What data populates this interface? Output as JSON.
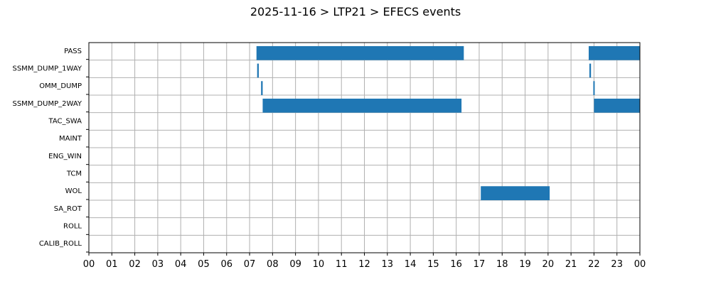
{
  "chart_data": {
    "type": "bar",
    "title": "2025-11-16 > LTP21 > EFECS events",
    "xlabel": "",
    "ylabel": "",
    "xlim": [
      0,
      24
    ],
    "x_ticks": [
      "00",
      "01",
      "02",
      "03",
      "04",
      "05",
      "06",
      "07",
      "08",
      "09",
      "10",
      "11",
      "12",
      "13",
      "14",
      "15",
      "16",
      "17",
      "18",
      "19",
      "20",
      "21",
      "22",
      "23",
      "00"
    ],
    "categories": [
      "PASS",
      "SSMM_DUMP_1WAY",
      "OMM_DUMP",
      "SSMM_DUMP_2WAY",
      "TAC_SWA",
      "MAINT",
      "ENG_WIN",
      "TCM",
      "WOL",
      "SA_ROT",
      "ROLL",
      "CALIB_ROLL"
    ],
    "series": [
      {
        "values": [
          {
            "category": "PASS",
            "start": 7.3,
            "end": 16.33
          },
          {
            "category": "PASS",
            "start": 21.77,
            "end": 24.0
          },
          {
            "category": "SSMM_DUMP_1WAY",
            "start": 7.33,
            "end": 7.4
          },
          {
            "category": "SSMM_DUMP_1WAY",
            "start": 21.8,
            "end": 21.87
          },
          {
            "category": "OMM_DUMP",
            "start": 7.5,
            "end": 7.57
          },
          {
            "category": "OMM_DUMP",
            "start": 21.97,
            "end": 22.02
          },
          {
            "category": "SSMM_DUMP_2WAY",
            "start": 7.57,
            "end": 16.23
          },
          {
            "category": "SSMM_DUMP_2WAY",
            "start": 22.0,
            "end": 24.0
          },
          {
            "category": "WOL",
            "start": 17.07,
            "end": 20.07
          }
        ],
        "color": "#1f77b4"
      }
    ],
    "grid": true,
    "legend": "none"
  }
}
